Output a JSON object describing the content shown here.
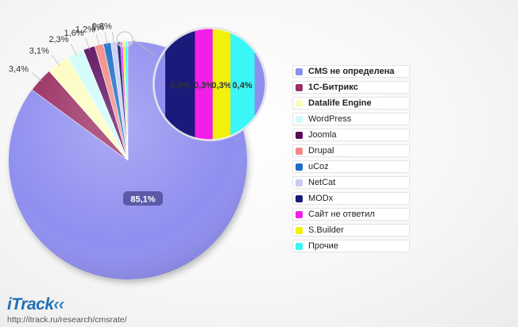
{
  "chart_data": {
    "type": "pie",
    "slices": [
      {
        "label": "CMS не определена",
        "value": 85.1,
        "display": "85,1%",
        "color": "#8f8ff0"
      },
      {
        "label": "1С-Битрикс",
        "value": 3.4,
        "display": "3,4%",
        "color": "#9a2f62"
      },
      {
        "label": "Datalife Engine",
        "value": 3.1,
        "display": "3,1%",
        "color": "#fdfcc0"
      },
      {
        "label": "WordPress",
        "value": 2.3,
        "display": "2,3%",
        "color": "#cffcf9"
      },
      {
        "label": "Joomla",
        "value": 1.6,
        "display": "1,6%",
        "color": "#5c0a5c"
      },
      {
        "label": "Drupal",
        "value": 1.2,
        "display": "1,2%",
        "color": "#f28a86"
      },
      {
        "label": "uCoz",
        "value": 1.0,
        "display": "1%",
        "color": "#1e6dc6"
      },
      {
        "label": "NetCat",
        "value": 0.8,
        "display": "0,8%",
        "color": "#c9cbf5"
      },
      {
        "label": "MODx",
        "value": 0.5,
        "display": "0,5%",
        "color": "#1a1a7a"
      },
      {
        "label": "Сайт не ответил",
        "value": 0.3,
        "display": "0,3%",
        "color": "#f21fe8"
      },
      {
        "label": "S.Builder",
        "value": 0.3,
        "display": "0,3%",
        "color": "#f3f00a"
      },
      {
        "label": "Прочие",
        "value": 0.4,
        "display": "0,4%",
        "color": "#3af6f6"
      }
    ],
    "zoom_callout": [
      "MODx",
      "Сайт не ответил",
      "S.Builder",
      "Прочие"
    ],
    "legend_position": "right"
  },
  "legend_bold": [
    "CMS не определена",
    "1С-Битрикс",
    "Datalife Engine"
  ],
  "branding": {
    "logo": "iTrack",
    "url": "http://itrack.ru/research/cmsrate/"
  }
}
